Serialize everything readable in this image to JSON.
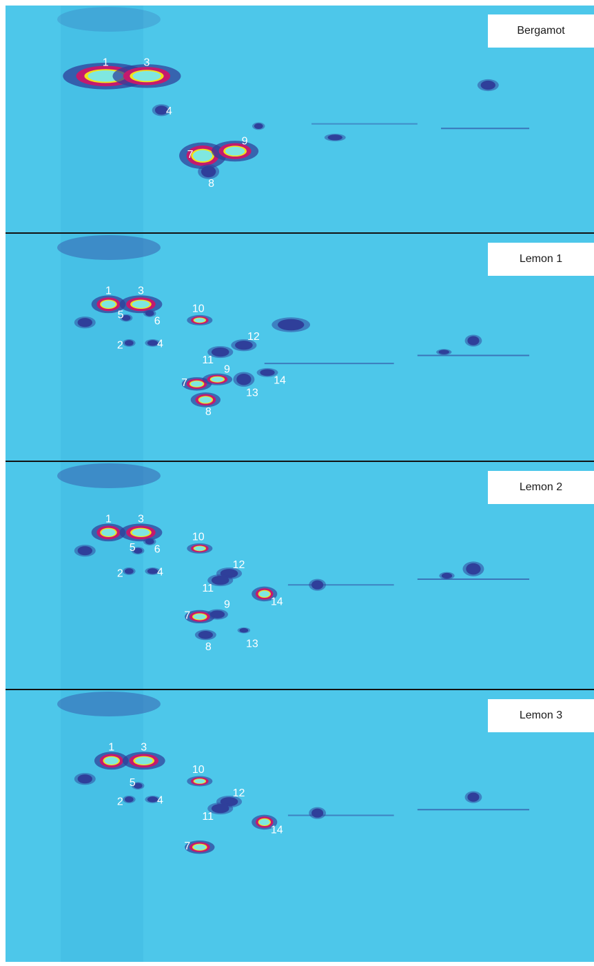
{
  "chart_data": {
    "type": "heatmap",
    "style": "GCxGC contour plots",
    "colors": {
      "background": "#4dc7ea",
      "streak": "#3ab4df",
      "low": "#2f3f9a",
      "mid": "#c41a6e",
      "high": "#f2e21a",
      "core": "#7fe7e0",
      "label": "#ffffff",
      "divider": "#111111"
    },
    "panels": [
      {
        "sample": "Bergamot",
        "peaks": [
          {
            "label": "1",
            "x": 17,
            "y": 31,
            "w": 10,
            "h": 9,
            "level": 1.0
          },
          {
            "label": "3",
            "x": 24,
            "y": 31,
            "w": 8,
            "h": 8,
            "level": 0.95
          },
          {
            "label": "4",
            "x": 26.5,
            "y": 46,
            "w": 2.2,
            "h": 4,
            "level": 0.35
          },
          {
            "label": "7",
            "x": 33.5,
            "y": 66,
            "w": 5.5,
            "h": 9,
            "level": 0.95
          },
          {
            "label": "9",
            "x": 39,
            "y": 64,
            "w": 5.5,
            "h": 7,
            "level": 0.95
          },
          {
            "label": "8",
            "x": 34.5,
            "y": 73,
            "w": 2.5,
            "h": 5,
            "level": 0.45
          }
        ],
        "minor": [
          {
            "x": 82,
            "y": 35,
            "w": 2.5,
            "h": 4,
            "level": 0.35
          },
          {
            "x": 56,
            "y": 58,
            "w": 2.5,
            "h": 2.5,
            "level": 0.3
          },
          {
            "x": 43,
            "y": 53,
            "w": 1.5,
            "h": 2.5,
            "level": 0.25
          }
        ],
        "bands": [
          {
            "x1": 74,
            "x2": 89,
            "y": 54,
            "level": 0.3
          },
          {
            "x1": 52,
            "x2": 70,
            "y": 52,
            "level": 0.12
          }
        ]
      },
      {
        "sample": "Lemon 1",
        "peaks": [
          {
            "label": "1",
            "x": 17.5,
            "y": 31,
            "w": 4,
            "h": 6,
            "level": 0.95
          },
          {
            "label": "3",
            "x": 23,
            "y": 31,
            "w": 5,
            "h": 6,
            "level": 0.95
          },
          {
            "label": "6",
            "x": 24.5,
            "y": 35,
            "w": 1.5,
            "h": 2.5,
            "level": 0.3
          },
          {
            "label": "5",
            "x": 20.5,
            "y": 37,
            "w": 1.5,
            "h": 2.5,
            "level": 0.3
          },
          {
            "label": "10",
            "x": 33,
            "y": 38,
            "w": 3,
            "h": 3.5,
            "level": 0.6
          },
          {
            "label": "12",
            "x": 40.5,
            "y": 49,
            "w": 3,
            "h": 4,
            "level": 0.4
          },
          {
            "label": "11",
            "x": 36.5,
            "y": 52,
            "w": 3,
            "h": 4,
            "level": 0.4
          },
          {
            "label": "2",
            "x": 21,
            "y": 48,
            "w": 1.5,
            "h": 2.5,
            "level": 0.3
          },
          {
            "label": "4",
            "x": 25,
            "y": 48,
            "w": 1.8,
            "h": 2.5,
            "level": 0.3
          },
          {
            "label": "7",
            "x": 32.5,
            "y": 66,
            "w": 3.5,
            "h": 4.5,
            "level": 0.9
          },
          {
            "label": "9",
            "x": 36,
            "y": 64,
            "w": 3.5,
            "h": 4,
            "level": 0.7
          },
          {
            "label": "13",
            "x": 40.5,
            "y": 64,
            "w": 2.5,
            "h": 5,
            "level": 0.45
          },
          {
            "label": "14",
            "x": 44.5,
            "y": 61,
            "w": 2.5,
            "h": 3,
            "level": 0.3
          },
          {
            "label": "8",
            "x": 34,
            "y": 73,
            "w": 3.5,
            "h": 5,
            "level": 0.8
          }
        ],
        "minor": [
          {
            "x": 13.5,
            "y": 39,
            "w": 2.5,
            "h": 4,
            "level": 0.35
          },
          {
            "x": 48.5,
            "y": 40,
            "w": 4.5,
            "h": 5,
            "level": 0.4
          },
          {
            "x": 79.5,
            "y": 47,
            "w": 2,
            "h": 4,
            "level": 0.35
          },
          {
            "x": 74.5,
            "y": 52,
            "w": 1.8,
            "h": 2,
            "level": 0.35
          }
        ],
        "bands": [
          {
            "x1": 70,
            "x2": 89,
            "y": 53.5,
            "level": 0.3
          },
          {
            "x1": 44,
            "x2": 66,
            "y": 57,
            "level": 0.25
          }
        ]
      },
      {
        "sample": "Lemon 2",
        "peaks": [
          {
            "label": "1",
            "x": 17.5,
            "y": 31,
            "w": 4,
            "h": 6,
            "level": 0.95
          },
          {
            "label": "3",
            "x": 23,
            "y": 31,
            "w": 5,
            "h": 6,
            "level": 0.95
          },
          {
            "label": "6",
            "x": 24.5,
            "y": 35,
            "w": 1.5,
            "h": 2.5,
            "level": 0.3
          },
          {
            "label": "5",
            "x": 22.5,
            "y": 39,
            "w": 1.5,
            "h": 2.5,
            "level": 0.3
          },
          {
            "label": "10",
            "x": 33,
            "y": 38,
            "w": 3,
            "h": 3.5,
            "level": 0.6
          },
          {
            "label": "12",
            "x": 38,
            "y": 49,
            "w": 3,
            "h": 4,
            "level": 0.4
          },
          {
            "label": "11",
            "x": 36.5,
            "y": 52,
            "w": 3,
            "h": 4,
            "level": 0.4
          },
          {
            "label": "2",
            "x": 21,
            "y": 48,
            "w": 1.5,
            "h": 2.5,
            "level": 0.3
          },
          {
            "label": "4",
            "x": 25,
            "y": 48,
            "w": 1.8,
            "h": 2.5,
            "level": 0.3
          },
          {
            "label": "14",
            "x": 44,
            "y": 58,
            "w": 3,
            "h": 5,
            "level": 0.75
          },
          {
            "label": "9",
            "x": 36,
            "y": 67,
            "w": 2.5,
            "h": 3.5,
            "level": 0.45
          },
          {
            "label": "7",
            "x": 33,
            "y": 68,
            "w": 3.5,
            "h": 4.5,
            "level": 0.9
          },
          {
            "label": "13",
            "x": 40.5,
            "y": 74,
            "w": 1.5,
            "h": 2,
            "level": 0.2
          },
          {
            "label": "8",
            "x": 34,
            "y": 76,
            "w": 2.5,
            "h": 3.5,
            "level": 0.45
          }
        ],
        "minor": [
          {
            "x": 13.5,
            "y": 39,
            "w": 2.5,
            "h": 4,
            "level": 0.35
          },
          {
            "x": 79.5,
            "y": 47,
            "w": 2.5,
            "h": 5,
            "level": 0.45
          },
          {
            "x": 75,
            "y": 50,
            "w": 1.8,
            "h": 2.5,
            "level": 0.35
          },
          {
            "x": 53,
            "y": 54,
            "w": 2,
            "h": 4,
            "level": 0.35
          }
        ],
        "bands": [
          {
            "x1": 70,
            "x2": 89,
            "y": 51.5,
            "level": 0.3
          },
          {
            "x1": 48,
            "x2": 66,
            "y": 54,
            "level": 0.2
          }
        ]
      },
      {
        "sample": "Lemon 3",
        "peaks": [
          {
            "label": "1",
            "x": 18,
            "y": 31,
            "w": 4,
            "h": 6,
            "level": 0.95
          },
          {
            "label": "3",
            "x": 23.5,
            "y": 31,
            "w": 5,
            "h": 6,
            "level": 0.95
          },
          {
            "label": "10",
            "x": 33,
            "y": 40,
            "w": 3,
            "h": 3.5,
            "level": 0.6
          },
          {
            "label": "5",
            "x": 22.5,
            "y": 42,
            "w": 1.5,
            "h": 2.5,
            "level": 0.3
          },
          {
            "label": "12",
            "x": 38,
            "y": 49,
            "w": 3,
            "h": 4,
            "level": 0.4
          },
          {
            "label": "11",
            "x": 36.5,
            "y": 52,
            "w": 3,
            "h": 4,
            "level": 0.4
          },
          {
            "label": "2",
            "x": 21,
            "y": 48,
            "w": 1.5,
            "h": 2.5,
            "level": 0.3
          },
          {
            "label": "4",
            "x": 25,
            "y": 48,
            "w": 1.8,
            "h": 2.5,
            "level": 0.3
          },
          {
            "label": "14",
            "x": 44,
            "y": 58,
            "w": 3,
            "h": 5,
            "level": 0.75
          },
          {
            "label": "7",
            "x": 33,
            "y": 69,
            "w": 3.5,
            "h": 4.5,
            "level": 0.9
          }
        ],
        "minor": [
          {
            "x": 13.5,
            "y": 39,
            "w": 2.5,
            "h": 4,
            "level": 0.35
          },
          {
            "x": 79.5,
            "y": 47,
            "w": 2,
            "h": 4,
            "level": 0.35
          },
          {
            "x": 53,
            "y": 54,
            "w": 2,
            "h": 4,
            "level": 0.35
          }
        ],
        "bands": [
          {
            "x1": 70,
            "x2": 89,
            "y": 52.5,
            "level": 0.3
          },
          {
            "x1": 48,
            "x2": 66,
            "y": 55,
            "level": 0.2
          }
        ]
      }
    ]
  }
}
